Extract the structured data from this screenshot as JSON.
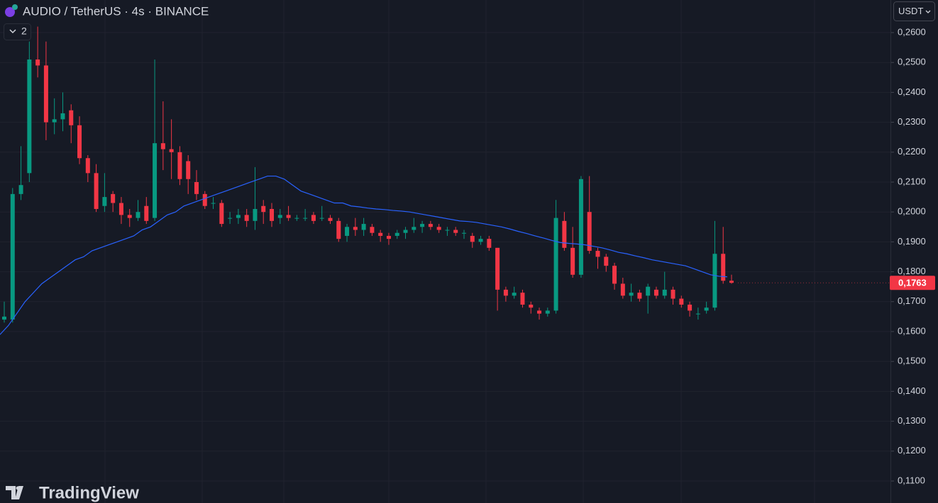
{
  "header": {
    "symbol": "AUDIO / TetherUS · 4s · BINANCE",
    "indicator_count": "2",
    "currency": "USDT",
    "brand": "TradingView"
  },
  "chart_data": {
    "type": "candlestick",
    "up_color": "#089981",
    "down_color": "#f23645",
    "ma_color": "#2962ff",
    "grid": true,
    "ylim": [
      0.10265,
      0.2709
    ],
    "yticks": [
      {
        "value": 0.26,
        "label": "0,2600"
      },
      {
        "value": 0.25,
        "label": "0,2500"
      },
      {
        "value": 0.24,
        "label": "0,2400"
      },
      {
        "value": 0.23,
        "label": "0,2300"
      },
      {
        "value": 0.22,
        "label": "0,2200"
      },
      {
        "value": 0.21,
        "label": "0,2100"
      },
      {
        "value": 0.2,
        "label": "0,2000"
      },
      {
        "value": 0.19,
        "label": "0,1900"
      },
      {
        "value": 0.18,
        "label": "0,1800"
      },
      {
        "value": 0.17,
        "label": "0,1700"
      },
      {
        "value": 0.16,
        "label": "0,1600"
      },
      {
        "value": 0.15,
        "label": "0,1500"
      },
      {
        "value": 0.14,
        "label": "0,1400"
      },
      {
        "value": 0.13,
        "label": "0,1300"
      },
      {
        "value": 0.12,
        "label": "0,1200"
      },
      {
        "value": 0.11,
        "label": "0,1100"
      }
    ],
    "last_price": {
      "value": 0.1763,
      "label": "0,1763"
    },
    "open": [
      0.164,
      0.164,
      0.206,
      0.213,
      0.251,
      0.249,
      0.23,
      0.231,
      0.234,
      0.229,
      0.218,
      0.213,
      0.202,
      0.206,
      0.203,
      0.199,
      0.198,
      0.202,
      0.198,
      0.223,
      0.221,
      0.22,
      0.217,
      0.21,
      0.206,
      0.203,
      0.203,
      0.198,
      0.198,
      0.199,
      0.197,
      0.202,
      0.201,
      0.198,
      0.199,
      0.198,
      0.198,
      0.199,
      0.198,
      0.198,
      0.197,
      0.192,
      0.195,
      0.194,
      0.195,
      0.193,
      0.192,
      0.192,
      0.193,
      0.194,
      0.195,
      0.196,
      0.195,
      0.194,
      0.194,
      0.193,
      0.192,
      0.19,
      0.191,
      0.188,
      0.174,
      0.172,
      0.173,
      0.169,
      0.167,
      0.166,
      0.167,
      0.197,
      0.188,
      0.179,
      0.2,
      0.187,
      0.185,
      0.182,
      0.176,
      0.172,
      0.173,
      0.172,
      0.174,
      0.172,
      0.174,
      0.171,
      0.169,
      0.166,
      0.167,
      0.168,
      0.186,
      0.177
    ],
    "high": [
      0.17,
      0.208,
      0.222,
      0.257,
      0.262,
      0.257,
      0.238,
      0.24,
      0.236,
      0.232,
      0.219,
      0.216,
      0.213,
      0.207,
      0.205,
      0.201,
      0.204,
      0.205,
      0.251,
      0.237,
      0.231,
      0.222,
      0.219,
      0.214,
      0.207,
      0.205,
      0.204,
      0.2,
      0.201,
      0.201,
      0.215,
      0.204,
      0.203,
      0.201,
      0.202,
      0.199,
      0.201,
      0.2,
      0.202,
      0.199,
      0.198,
      0.196,
      0.198,
      0.198,
      0.196,
      0.194,
      0.193,
      0.194,
      0.195,
      0.198,
      0.197,
      0.197,
      0.196,
      0.195,
      0.195,
      0.194,
      0.193,
      0.192,
      0.192,
      0.188,
      0.175,
      0.175,
      0.174,
      0.17,
      0.168,
      0.168,
      0.204,
      0.2,
      0.195,
      0.212,
      0.212,
      0.188,
      0.186,
      0.183,
      0.178,
      0.176,
      0.174,
      0.176,
      0.175,
      0.18,
      0.175,
      0.172,
      0.17,
      0.168,
      0.17,
      0.197,
      0.195,
      0.179
    ],
    "low": [
      0.163,
      0.163,
      0.204,
      0.21,
      0.245,
      0.224,
      0.226,
      0.227,
      0.223,
      0.216,
      0.21,
      0.2,
      0.2,
      0.2,
      0.196,
      0.195,
      0.197,
      0.196,
      0.197,
      0.214,
      0.211,
      0.209,
      0.206,
      0.204,
      0.201,
      0.201,
      0.195,
      0.196,
      0.196,
      0.195,
      0.194,
      0.196,
      0.195,
      0.196,
      0.197,
      0.197,
      0.197,
      0.196,
      0.197,
      0.196,
      0.19,
      0.19,
      0.192,
      0.192,
      0.192,
      0.19,
      0.189,
      0.191,
      0.191,
      0.193,
      0.193,
      0.194,
      0.193,
      0.192,
      0.192,
      0.191,
      0.188,
      0.189,
      0.187,
      0.167,
      0.17,
      0.171,
      0.168,
      0.166,
      0.164,
      0.165,
      0.166,
      0.187,
      0.178,
      0.178,
      0.186,
      0.181,
      0.18,
      0.174,
      0.171,
      0.17,
      0.17,
      0.166,
      0.171,
      0.171,
      0.169,
      0.168,
      0.165,
      0.164,
      0.166,
      0.167,
      0.176,
      0.176
    ],
    "close": [
      0.165,
      0.206,
      0.209,
      0.251,
      0.249,
      0.23,
      0.231,
      0.233,
      0.229,
      0.218,
      0.213,
      0.201,
      0.205,
      0.203,
      0.199,
      0.198,
      0.2,
      0.197,
      0.223,
      0.221,
      0.22,
      0.211,
      0.211,
      0.206,
      0.202,
      0.203,
      0.196,
      0.198,
      0.199,
      0.197,
      0.201,
      0.2,
      0.197,
      0.199,
      0.198,
      0.198,
      0.198,
      0.197,
      0.198,
      0.197,
      0.191,
      0.195,
      0.194,
      0.196,
      0.193,
      0.192,
      0.191,
      0.193,
      0.194,
      0.195,
      0.196,
      0.195,
      0.194,
      0.194,
      0.193,
      0.193,
      0.19,
      0.191,
      0.188,
      0.174,
      0.172,
      0.173,
      0.169,
      0.168,
      0.166,
      0.167,
      0.198,
      0.188,
      0.179,
      0.211,
      0.187,
      0.185,
      0.182,
      0.176,
      0.172,
      0.173,
      0.171,
      0.175,
      0.172,
      0.174,
      0.171,
      0.169,
      0.167,
      0.166,
      0.168,
      0.186,
      0.177,
      0.1763
    ],
    "ma": [
      0.159,
      0.162,
      0.166,
      0.17,
      0.173,
      0.176,
      0.178,
      0.18,
      0.182,
      0.184,
      0.185,
      0.187,
      0.188,
      0.189,
      0.19,
      0.191,
      0.192,
      0.194,
      0.195,
      0.197,
      0.199,
      0.2,
      0.202,
      0.203,
      0.204,
      0.205,
      0.206,
      0.207,
      0.208,
      0.209,
      0.21,
      0.211,
      0.212,
      0.212,
      0.211,
      0.209,
      0.207,
      0.206,
      0.205,
      0.204,
      0.203,
      0.203,
      0.202,
      0.2017,
      0.2013,
      0.201,
      0.2008,
      0.2005,
      0.2003,
      0.2,
      0.1995,
      0.199,
      0.1985,
      0.198,
      0.1975,
      0.197,
      0.1968,
      0.1965,
      0.196,
      0.1955,
      0.195,
      0.1943,
      0.1935,
      0.1928,
      0.192,
      0.1913,
      0.1905,
      0.1898,
      0.1895,
      0.1893,
      0.189,
      0.1885,
      0.188,
      0.1873,
      0.1865,
      0.186,
      0.1853,
      0.1847,
      0.184,
      0.1835,
      0.183,
      0.1825,
      0.182,
      0.181,
      0.18,
      0.179,
      0.1785,
      0.1783
    ]
  }
}
